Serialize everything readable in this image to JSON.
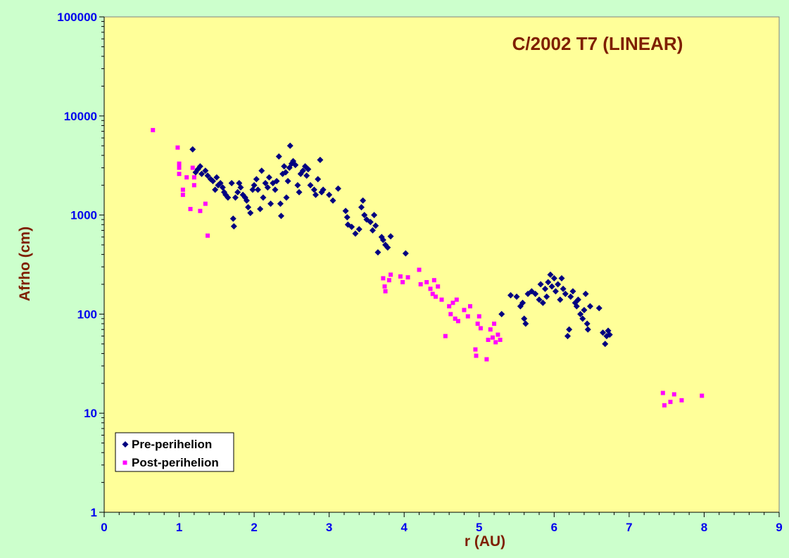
{
  "chart_data": {
    "type": "scatter",
    "title": "C/2002 T7 (LINEAR)",
    "xlabel": "r (AU)",
    "ylabel": "Afrho (cm)",
    "xlim": [
      0,
      9
    ],
    "ylim": [
      1,
      100000
    ],
    "y_scale": "log",
    "x_ticks": [
      "0",
      "1",
      "2",
      "3",
      "4",
      "5",
      "6",
      "7",
      "8",
      "9"
    ],
    "y_ticks": [
      "1",
      "10",
      "100",
      "1000",
      "10000",
      "100000"
    ],
    "legend": {
      "placement": "bottom-left",
      "entries": [
        "Pre-perihelion",
        "Post-perihelion"
      ]
    },
    "colors": {
      "plot_bg": "#ffff99",
      "page_bg": "#ccffcc",
      "pre": "#000080",
      "post": "#ff00ff",
      "tick": "#0000ee",
      "title": "#7f1f00"
    },
    "series": [
      {
        "name": "Pre-perihelion",
        "marker": "diamond",
        "points": [
          [
            1.18,
            4600
          ],
          [
            1.22,
            2700
          ],
          [
            1.25,
            2900
          ],
          [
            1.28,
            3100
          ],
          [
            1.3,
            2600
          ],
          [
            1.35,
            2800
          ],
          [
            1.38,
            2500
          ],
          [
            1.42,
            2300
          ],
          [
            1.45,
            2200
          ],
          [
            1.48,
            1800
          ],
          [
            1.5,
            2400
          ],
          [
            1.52,
            2000
          ],
          [
            1.55,
            2100
          ],
          [
            1.58,
            1900
          ],
          [
            1.6,
            1700
          ],
          [
            1.62,
            1600
          ],
          [
            1.65,
            1500
          ],
          [
            1.7,
            2100
          ],
          [
            1.72,
            920
          ],
          [
            1.73,
            770
          ],
          [
            1.75,
            1500
          ],
          [
            1.78,
            1700
          ],
          [
            1.8,
            2100
          ],
          [
            1.82,
            1900
          ],
          [
            1.85,
            1600
          ],
          [
            1.88,
            1500
          ],
          [
            1.9,
            1400
          ],
          [
            1.92,
            1200
          ],
          [
            1.95,
            1050
          ],
          [
            1.98,
            1800
          ],
          [
            2.0,
            2000
          ],
          [
            2.03,
            2300
          ],
          [
            2.05,
            1800
          ],
          [
            2.08,
            1150
          ],
          [
            2.1,
            2800
          ],
          [
            2.12,
            1500
          ],
          [
            2.15,
            2100
          ],
          [
            2.18,
            1900
          ],
          [
            2.2,
            2400
          ],
          [
            2.22,
            1300
          ],
          [
            2.25,
            2100
          ],
          [
            2.28,
            1800
          ],
          [
            2.3,
            2200
          ],
          [
            2.33,
            3900
          ],
          [
            2.35,
            1300
          ],
          [
            2.36,
            980
          ],
          [
            2.38,
            2600
          ],
          [
            2.4,
            3100
          ],
          [
            2.42,
            2700
          ],
          [
            2.43,
            1500
          ],
          [
            2.45,
            2200
          ],
          [
            2.47,
            3000
          ],
          [
            2.48,
            5000
          ],
          [
            2.5,
            3300
          ],
          [
            2.52,
            3500
          ],
          [
            2.55,
            3200
          ],
          [
            2.58,
            2000
          ],
          [
            2.6,
            1700
          ],
          [
            2.62,
            2600
          ],
          [
            2.65,
            2800
          ],
          [
            2.68,
            3100
          ],
          [
            2.7,
            2500
          ],
          [
            2.72,
            2900
          ],
          [
            2.75,
            2000
          ],
          [
            2.8,
            1800
          ],
          [
            2.82,
            1600
          ],
          [
            2.85,
            2300
          ],
          [
            2.88,
            3600
          ],
          [
            2.9,
            1700
          ],
          [
            2.92,
            1800
          ],
          [
            3.0,
            1600
          ],
          [
            3.05,
            1400
          ],
          [
            3.12,
            1850
          ],
          [
            3.22,
            1100
          ],
          [
            3.24,
            950
          ],
          [
            3.25,
            800
          ],
          [
            3.3,
            760
          ],
          [
            3.35,
            650
          ],
          [
            3.4,
            720
          ],
          [
            3.43,
            1200
          ],
          [
            3.45,
            1400
          ],
          [
            3.47,
            1000
          ],
          [
            3.5,
            900
          ],
          [
            3.55,
            850
          ],
          [
            3.58,
            700
          ],
          [
            3.6,
            1000
          ],
          [
            3.62,
            780
          ],
          [
            3.65,
            420
          ],
          [
            3.7,
            600
          ],
          [
            3.72,
            560
          ],
          [
            3.75,
            500
          ],
          [
            3.78,
            470
          ],
          [
            3.82,
            610
          ],
          [
            4.02,
            410
          ],
          [
            5.3,
            100
          ],
          [
            5.42,
            155
          ],
          [
            5.5,
            150
          ],
          [
            5.55,
            120
          ],
          [
            5.58,
            130
          ],
          [
            5.6,
            90
          ],
          [
            5.62,
            80
          ],
          [
            5.65,
            160
          ],
          [
            5.7,
            170
          ],
          [
            5.75,
            160
          ],
          [
            5.8,
            140
          ],
          [
            5.82,
            200
          ],
          [
            5.85,
            130
          ],
          [
            5.88,
            180
          ],
          [
            5.9,
            150
          ],
          [
            5.92,
            210
          ],
          [
            5.95,
            250
          ],
          [
            5.97,
            190
          ],
          [
            6.0,
            230
          ],
          [
            6.02,
            170
          ],
          [
            6.05,
            200
          ],
          [
            6.08,
            140
          ],
          [
            6.1,
            230
          ],
          [
            6.12,
            180
          ],
          [
            6.15,
            160
          ],
          [
            6.18,
            60
          ],
          [
            6.2,
            70
          ],
          [
            6.22,
            150
          ],
          [
            6.25,
            170
          ],
          [
            6.28,
            130
          ],
          [
            6.3,
            120
          ],
          [
            6.32,
            140
          ],
          [
            6.35,
            100
          ],
          [
            6.38,
            90
          ],
          [
            6.4,
            110
          ],
          [
            6.42,
            160
          ],
          [
            6.44,
            80
          ],
          [
            6.45,
            70
          ],
          [
            6.48,
            120
          ],
          [
            6.6,
            115
          ],
          [
            6.65,
            65
          ],
          [
            6.68,
            50
          ],
          [
            6.7,
            60
          ],
          [
            6.72,
            68
          ],
          [
            6.74,
            62
          ]
        ]
      },
      {
        "name": "Post-perihelion",
        "marker": "square",
        "points": [
          [
            0.65,
            7200
          ],
          [
            0.98,
            4800
          ],
          [
            1.0,
            3300
          ],
          [
            1.0,
            3000
          ],
          [
            1.0,
            2600
          ],
          [
            1.05,
            1800
          ],
          [
            1.05,
            1600
          ],
          [
            1.1,
            2400
          ],
          [
            1.15,
            1150
          ],
          [
            1.18,
            3000
          ],
          [
            1.2,
            2000
          ],
          [
            1.2,
            2400
          ],
          [
            1.28,
            1100
          ],
          [
            1.35,
            1300
          ],
          [
            1.38,
            620
          ],
          [
            3.72,
            230
          ],
          [
            3.74,
            190
          ],
          [
            3.75,
            170
          ],
          [
            3.8,
            220
          ],
          [
            3.82,
            250
          ],
          [
            3.95,
            240
          ],
          [
            3.98,
            210
          ],
          [
            4.05,
            235
          ],
          [
            4.2,
            280
          ],
          [
            4.22,
            200
          ],
          [
            4.3,
            210
          ],
          [
            4.35,
            180
          ],
          [
            4.38,
            160
          ],
          [
            4.4,
            220
          ],
          [
            4.42,
            150
          ],
          [
            4.45,
            190
          ],
          [
            4.5,
            140
          ],
          [
            4.55,
            60
          ],
          [
            4.6,
            120
          ],
          [
            4.62,
            100
          ],
          [
            4.65,
            130
          ],
          [
            4.68,
            90
          ],
          [
            4.7,
            140
          ],
          [
            4.72,
            85
          ],
          [
            4.8,
            110
          ],
          [
            4.85,
            95
          ],
          [
            4.88,
            120
          ],
          [
            4.95,
            44
          ],
          [
            4.96,
            38
          ],
          [
            4.98,
            80
          ],
          [
            5.0,
            95
          ],
          [
            5.02,
            72
          ],
          [
            5.1,
            35
          ],
          [
            5.12,
            55
          ],
          [
            5.15,
            70
          ],
          [
            5.18,
            58
          ],
          [
            5.2,
            80
          ],
          [
            5.22,
            52
          ],
          [
            5.25,
            62
          ],
          [
            5.28,
            55
          ],
          [
            7.45,
            16
          ],
          [
            7.47,
            12
          ],
          [
            7.55,
            13
          ],
          [
            7.6,
            15.5
          ],
          [
            7.7,
            13.5
          ],
          [
            7.97,
            15
          ]
        ]
      }
    ]
  }
}
